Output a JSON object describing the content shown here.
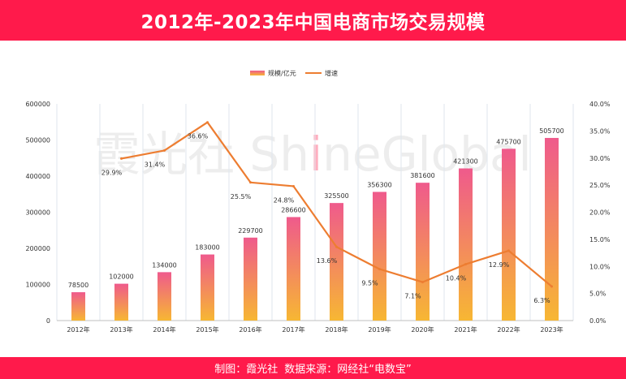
{
  "header": {
    "title": "2012年-2023年中国电商市场交易规模"
  },
  "watermark": {
    "left": "霞光社 Sh",
    "i": "i",
    "right": "neGlobal",
    "i_color": "#ff1a4b"
  },
  "footer": {
    "producer": "制图：霞光社",
    "source": "数据来源：网经社“电数宝”"
  },
  "colors": {
    "brand": "#ff1a4b",
    "bar_top": "#ef5a8c",
    "bar_bottom": "#f7b733",
    "line": "#ed7d31"
  },
  "chart_data": {
    "type": "bar",
    "categories": [
      "2012年",
      "2013年",
      "2014年",
      "2015年",
      "2016年",
      "2017年",
      "2018年",
      "2019年",
      "2020年",
      "2021年",
      "2022年",
      "2023年"
    ],
    "series": [
      {
        "name": "规模/亿元",
        "type": "bar",
        "axis": "left",
        "values": [
          78500,
          102000,
          134000,
          183000,
          229700,
          286600,
          325500,
          356300,
          381600,
          421300,
          475700,
          505700
        ],
        "labels": [
          "78500",
          "102000",
          "134000",
          "183000",
          "229700",
          "286600",
          "325500",
          "356300",
          "381600",
          "421300",
          "475700",
          "505700"
        ]
      },
      {
        "name": "增速",
        "type": "line",
        "axis": "right",
        "values": [
          null,
          29.9,
          31.4,
          36.6,
          25.5,
          24.8,
          13.6,
          9.5,
          7.1,
          10.4,
          12.9,
          6.3
        ],
        "labels": [
          "",
          "29.9%",
          "31.4%",
          "36.6%",
          "25.5%",
          "24.8%",
          "13.6%",
          "9.5%",
          "7.1%",
          "10.4%",
          "12.9%",
          "6.3%"
        ]
      }
    ],
    "ylim_left": [
      0,
      600000
    ],
    "yticks_left": [
      "0",
      "100000",
      "200000",
      "300000",
      "400000",
      "500000",
      "600000"
    ],
    "ylim_right": [
      0,
      40
    ],
    "yticks_right": [
      "0.0%",
      "5.0%",
      "10.0%",
      "15.0%",
      "20.0%",
      "25.0%",
      "30.0%",
      "35.0%",
      "40.0%"
    ],
    "grid": "vertical",
    "legend": "top-center"
  }
}
